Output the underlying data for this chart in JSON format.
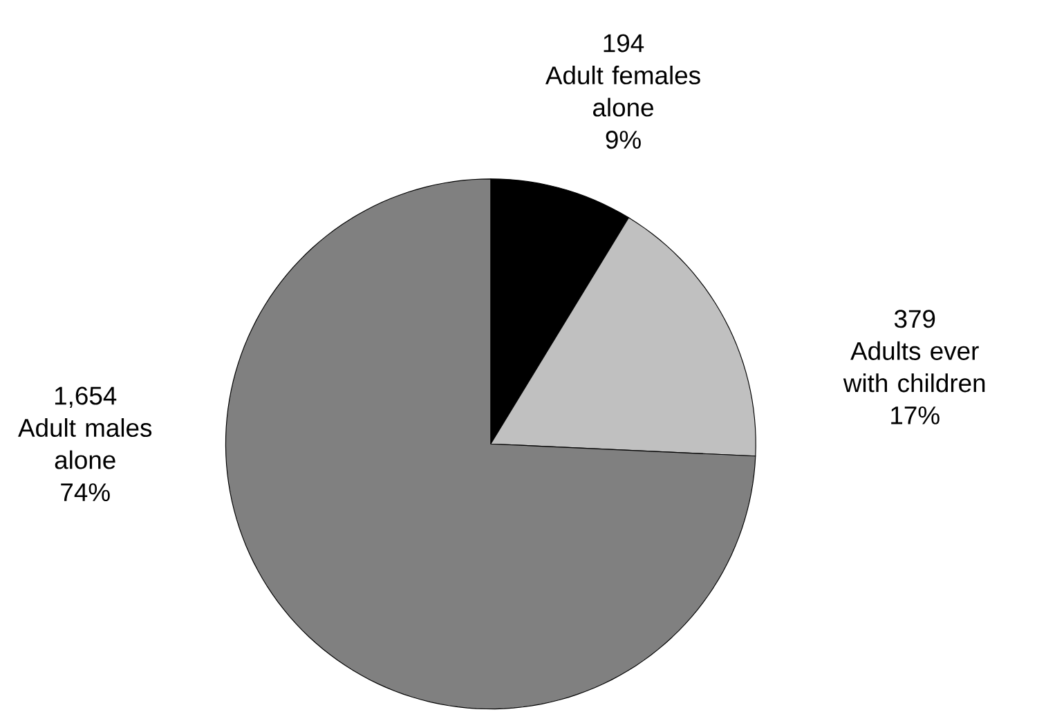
{
  "chart_data": {
    "type": "pie",
    "categories": [
      "Adult females alone",
      "Adults ever with children",
      "Adult males alone"
    ],
    "values": [
      194,
      379,
      1654
    ],
    "colors": [
      "#000000",
      "#c0c0c0",
      "#808080"
    ],
    "value_labels": [
      "194",
      "379",
      "1,654"
    ],
    "annotations": [
      "9%",
      "17%",
      "74%"
    ]
  }
}
